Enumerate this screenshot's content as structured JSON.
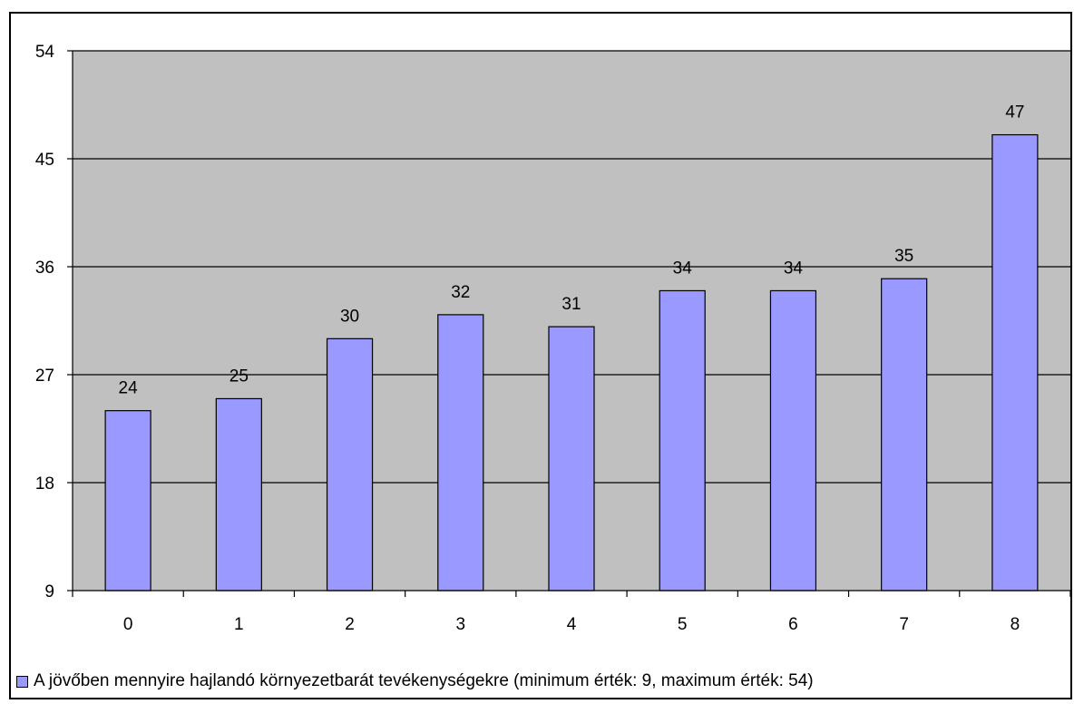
{
  "chart_data": {
    "type": "bar",
    "categories": [
      "0",
      "1",
      "2",
      "3",
      "4",
      "5",
      "6",
      "7",
      "8"
    ],
    "series": [
      {
        "name": "A jövőben mennyire hajlandó környezetbarát tevékenységekre (minimum érték: 9, maximum érték: 54)",
        "values": [
          24,
          25,
          30,
          32,
          31,
          34,
          34,
          35,
          47
        ],
        "labels": [
          "24",
          "25",
          "30",
          "32",
          "31",
          "34",
          "34",
          "35",
          "47"
        ]
      }
    ],
    "yticks": [
      9,
      18,
      27,
      36,
      45,
      54
    ],
    "ylim": [
      9,
      54
    ],
    "grid": true,
    "legend_position": "bottom",
    "colors": {
      "bar": "#9999ff",
      "plot_background": "#c0c0c0",
      "gridline": "#000000"
    }
  },
  "legend": {
    "label": "A jövőben mennyire hajlandó környezetbarát tevékenységekre (minimum érték: 9, maximum érték: 54)"
  }
}
